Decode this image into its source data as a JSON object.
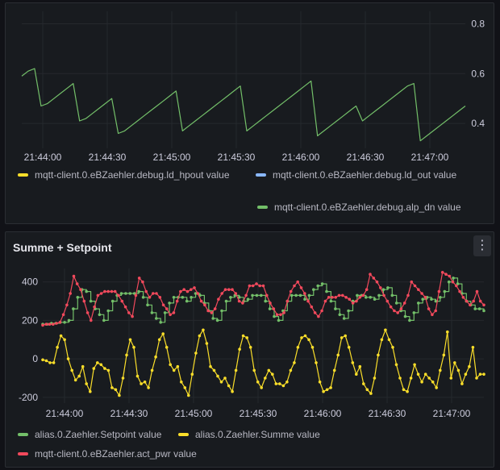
{
  "panels": [
    {
      "title": "",
      "chart_data": {
        "type": "line",
        "x_ticks": [
          "21:44:00",
          "21:44:30",
          "21:45:00",
          "21:45:30",
          "21:46:00",
          "21:46:30",
          "21:47:00"
        ],
        "y_ticks": [
          "0.8",
          "0.6",
          "0.4"
        ],
        "ylim": [
          0.3,
          0.85
        ],
        "y_axis_position": "right",
        "grid": true,
        "legend": [
          {
            "name": "mqtt-client.0.eBZaehler.debug.ld_hpout value",
            "color": "#fade2a"
          },
          {
            "name": "mqtt-client.0.eBZaehler.debug.ld_out value",
            "color": "#8ab8ff"
          },
          {
            "name": "mqtt-client.0.eBZaehler.debug.alp_dn value",
            "color": "#73bf69"
          }
        ],
        "series": [
          {
            "name": "mqtt-client.0.eBZaehler.debug.alp_dn value",
            "color": "#73bf69",
            "values": [
              0.59,
              0.61,
              0.62,
              0.47,
              0.48,
              0.5,
              0.52,
              0.54,
              0.56,
              0.41,
              0.42,
              0.44,
              0.46,
              0.48,
              0.5,
              0.36,
              0.37,
              0.39,
              0.41,
              0.43,
              0.45,
              0.47,
              0.49,
              0.51,
              0.53,
              0.37,
              0.39,
              0.41,
              0.43,
              0.45,
              0.47,
              0.49,
              0.51,
              0.53,
              0.55,
              0.37,
              0.39,
              0.41,
              0.43,
              0.45,
              0.47,
              0.49,
              0.51,
              0.53,
              0.55,
              0.57,
              0.35,
              0.37,
              0.39,
              0.41,
              0.43,
              0.45,
              0.47,
              0.41,
              0.43,
              0.45,
              0.47,
              0.49,
              0.51,
              0.53,
              0.55,
              0.56,
              0.33,
              0.35,
              0.37,
              0.39,
              0.41,
              0.43,
              0.45,
              0.47
            ]
          }
        ]
      }
    },
    {
      "title": "Summe + Setpoint",
      "menu_icon": "vertical-ellipsis-icon",
      "chart_data": {
        "type": "line",
        "x_ticks": [
          "21:44:00",
          "21:44:30",
          "21:45:00",
          "21:45:30",
          "21:46:00",
          "21:46:30",
          "21:47:00"
        ],
        "y_ticks": [
          "400",
          "200",
          "0",
          "-200"
        ],
        "ylim": [
          -230,
          470
        ],
        "y_axis_position": "left",
        "grid": true,
        "legend": [
          {
            "name": "alias.0.Zaehler.Setpoint value",
            "color": "#73bf69"
          },
          {
            "name": "alias.0.Zaehler.Summe value",
            "color": "#fade2a"
          },
          {
            "name": "mqtt-client.0.eBZaehler.act_pwr value",
            "color": "#f2495c"
          }
        ],
        "series": [
          {
            "name": "alias.0.Zaehler.Setpoint value",
            "color": "#73bf69",
            "step": true,
            "values": [
              180,
              180,
              185,
              185,
              190,
              190,
              200,
              260,
              320,
              360,
              350,
              300,
              260,
              230,
              200,
              250,
              300,
              330,
              340,
              340,
              340,
              340,
              350,
              320,
              280,
              240,
              210,
              190,
              240,
              290,
              320,
              320,
              320,
              300,
              320,
              340,
              330,
              290,
              250,
              210,
              200,
              250,
              300,
              320,
              330,
              320,
              300,
              310,
              330,
              330,
              330,
              300,
              260,
              220,
              200,
              250,
              300,
              330,
              330,
              330,
              310,
              330,
              360,
              380,
              390,
              350,
              300,
              260,
              230,
              210,
              250,
              300,
              330,
              330,
              320,
              320,
              310,
              330,
              360,
              370,
              330,
              290,
              250,
              220,
              200,
              240,
              290,
              310,
              320,
              310,
              300,
              320,
              350,
              400,
              420,
              390,
              340,
              300,
              280,
              260,
              260,
              250
            ]
          },
          {
            "name": "alias.0.Zaehler.Summe value",
            "color": "#fade2a",
            "step": false,
            "values": [
              -5,
              -10,
              -20,
              -20,
              60,
              120,
              100,
              0,
              -60,
              -110,
              -90,
              -40,
              -130,
              -170,
              -50,
              -20,
              -30,
              -50,
              -60,
              -150,
              -160,
              -190,
              -100,
              20,
              100,
              60,
              -90,
              -130,
              -120,
              -150,
              -60,
              10,
              100,
              130,
              60,
              -30,
              -60,
              -40,
              -120,
              -150,
              -190,
              -80,
              30,
              120,
              150,
              80,
              -40,
              -60,
              -90,
              -120,
              -100,
              -140,
              -170,
              -60,
              50,
              120,
              110,
              60,
              -60,
              -120,
              -150,
              -100,
              -60,
              -80,
              -130,
              -130,
              -140,
              -120,
              -60,
              -20,
              60,
              110,
              120,
              100,
              60,
              -20,
              -120,
              -170,
              -160,
              -150,
              -60,
              20,
              110,
              120,
              60,
              -20,
              -80,
              -40,
              -130,
              -160,
              -180,
              -100,
              20,
              100,
              150,
              100,
              60,
              -30,
              -100,
              -160,
              -170,
              -100,
              -30,
              -80,
              -120,
              -80,
              -100,
              -120,
              -150,
              -60,
              20,
              140,
              -100,
              -20,
              -60,
              -130,
              -80,
              -40,
              60,
              -100,
              -80,
              -80
            ]
          },
          {
            "name": "mqtt-client.0.eBZaehler.act_pwr value",
            "color": "#f2495c",
            "step": false,
            "values": [
              175,
              180,
              180,
              180,
              185,
              190,
              230,
              280,
              340,
              430,
              390,
              360,
              300,
              240,
              200,
              270,
              330,
              340,
              350,
              350,
              350,
              350,
              330,
              300,
              270,
              240,
              220,
              330,
              420,
              400,
              350,
              320,
              340,
              340,
              320,
              280,
              260,
              230,
              240,
              300,
              350,
              360,
              350,
              360,
              370,
              340,
              300,
              280,
              250,
              240,
              260,
              310,
              340,
              360,
              360,
              360,
              340,
              300,
              290,
              330,
              380,
              380,
              390,
              380,
              380,
              330,
              290,
              260,
              230,
              230,
              240,
              300,
              350,
              380,
              400,
              370,
              340,
              300,
              270,
              240,
              220,
              250,
              300,
              320,
              320,
              320,
              330,
              330,
              320,
              310,
              290,
              300,
              320,
              330,
              360,
              440,
              420,
              400,
              370,
              330,
              300,
              270,
              250,
              240,
              260,
              290,
              330,
              400,
              380,
              360,
              340,
              320,
              260,
              230,
              250,
              350,
              450,
              440,
              430,
              400,
              380,
              350,
              320,
              300,
              280,
              300,
              350,
              300,
              280
            ]
          }
        ]
      }
    }
  ]
}
